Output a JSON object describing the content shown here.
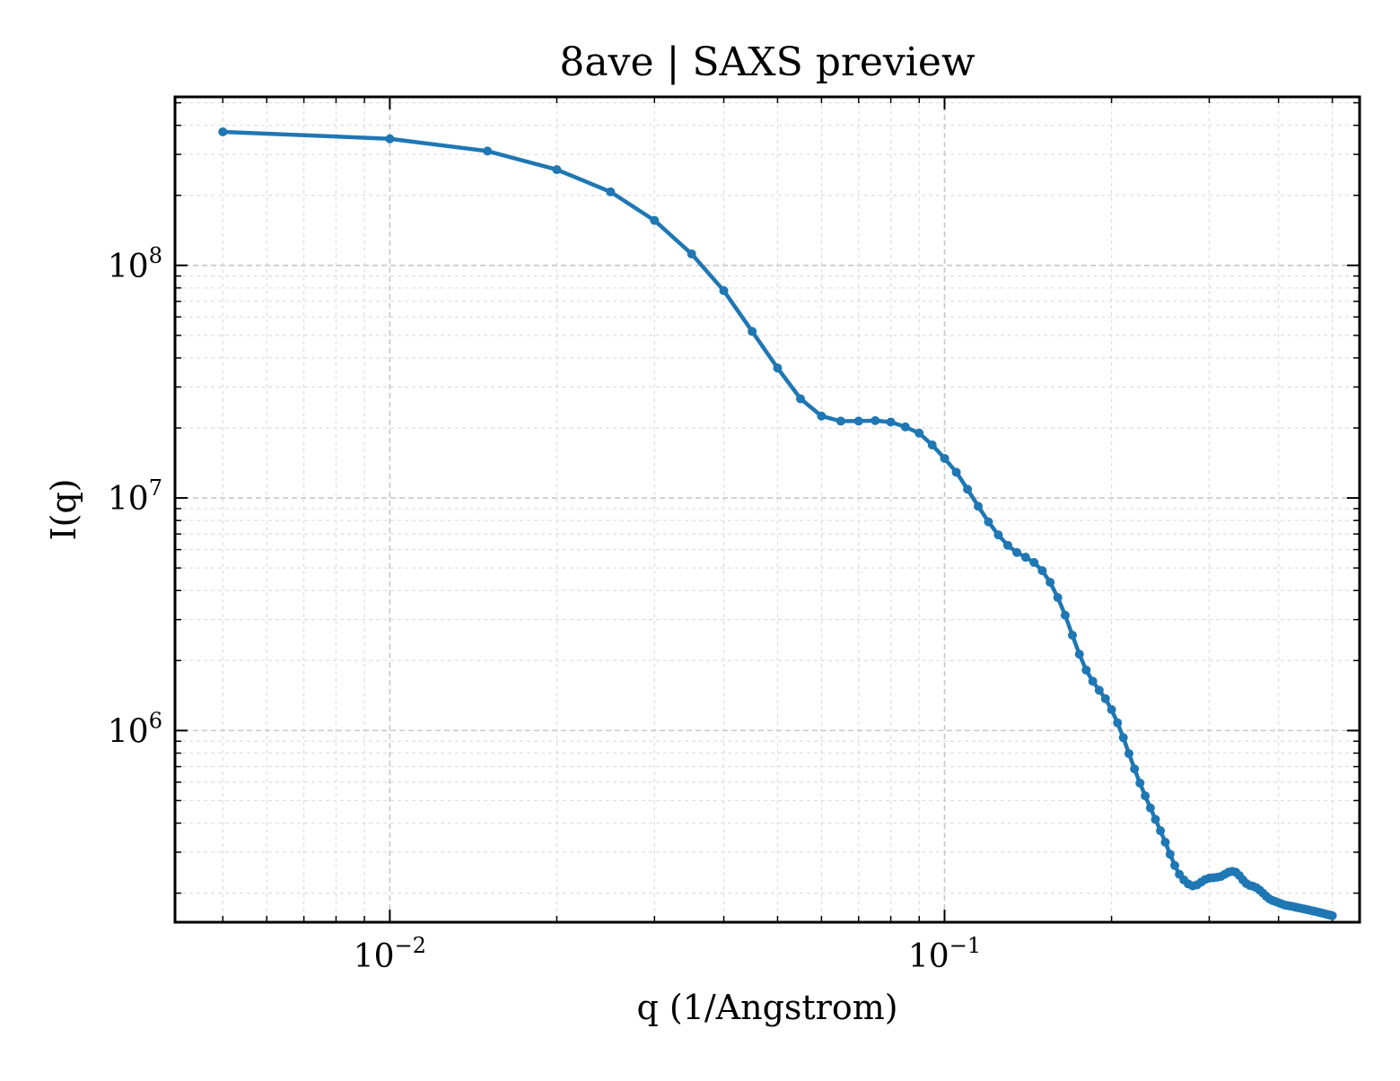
{
  "chart_data": {
    "type": "line",
    "title": "8ave | SAXS preview",
    "xlabel": "q (1/Angstrom)",
    "ylabel": "I(q)",
    "xscale": "log",
    "yscale": "log",
    "xlim": [
      0.0041,
      0.56
    ],
    "ylim": [
      150000,
      530000000
    ],
    "grid": true,
    "legend": "none",
    "line_color": "#1f77b4",
    "x_ticks": [
      {
        "value": 0.01,
        "base": "10",
        "exp": "−2"
      },
      {
        "value": 0.1,
        "base": "10",
        "exp": "−1"
      }
    ],
    "y_ticks": [
      {
        "value": 1000000,
        "base": "10",
        "exp": "6"
      },
      {
        "value": 10000000,
        "base": "10",
        "exp": "7"
      },
      {
        "value": 100000000,
        "base": "10",
        "exp": "8"
      }
    ],
    "series": [
      {
        "x": [
          0.005,
          0.01,
          0.015,
          0.02,
          0.025,
          0.03,
          0.035,
          0.04,
          0.045,
          0.05,
          0.055,
          0.06,
          0.065,
          0.07,
          0.075,
          0.08,
          0.085,
          0.09,
          0.095,
          0.1,
          0.105,
          0.11,
          0.115,
          0.12,
          0.125,
          0.13,
          0.135,
          0.14,
          0.145,
          0.15,
          0.155,
          0.16,
          0.165,
          0.17,
          0.175,
          0.18,
          0.185,
          0.19,
          0.195,
          0.2,
          0.205,
          0.21,
          0.215,
          0.22,
          0.225,
          0.23,
          0.235,
          0.24,
          0.245,
          0.25,
          0.255,
          0.26,
          0.265,
          0.27,
          0.275,
          0.28,
          0.285,
          0.29,
          0.295,
          0.3,
          0.305,
          0.31,
          0.315,
          0.32,
          0.325,
          0.33,
          0.335,
          0.34,
          0.345,
          0.35,
          0.355,
          0.36,
          0.365,
          0.37,
          0.375,
          0.38,
          0.385,
          0.39,
          0.395,
          0.4,
          0.405,
          0.41,
          0.415,
          0.42,
          0.425,
          0.43,
          0.435,
          0.44,
          0.445,
          0.45,
          0.455,
          0.46,
          0.465,
          0.47,
          0.475,
          0.48,
          0.485,
          0.49,
          0.495,
          0.5
        ],
        "y": [
          375000000,
          350000000,
          310000000,
          258000000,
          207000000,
          156000000,
          112000000,
          77800000,
          52000000,
          36200000,
          26700000,
          22500000,
          21400000,
          21400000,
          21500000,
          21200000,
          20200000,
          19000000,
          16900000,
          14800000,
          12900000,
          10900000,
          9210000,
          7890000,
          6940000,
          6260000,
          5830000,
          5560000,
          5280000,
          4870000,
          4340000,
          3730000,
          3130000,
          2570000,
          2130000,
          1820000,
          1630000,
          1490000,
          1370000,
          1230000,
          1080000,
          932000,
          796000,
          684000,
          595000,
          524000,
          465000,
          415000,
          371000,
          331000,
          294000,
          263000,
          241000,
          228000,
          219000,
          215000,
          217000,
          223000,
          229000,
          232000,
          233000,
          234000,
          236000,
          241000,
          246000,
          248000,
          246000,
          238000,
          228000,
          220000,
          216000,
          214000,
          211000,
          206000,
          200000,
          194000,
          189000,
          186000,
          184000,
          182000,
          180000,
          178000,
          177000,
          176000,
          175000,
          174000,
          173000,
          172000,
          171000,
          170000,
          169000,
          168000,
          167000,
          166000,
          165000,
          164000,
          163000,
          162000,
          161000,
          160000
        ]
      }
    ]
  }
}
